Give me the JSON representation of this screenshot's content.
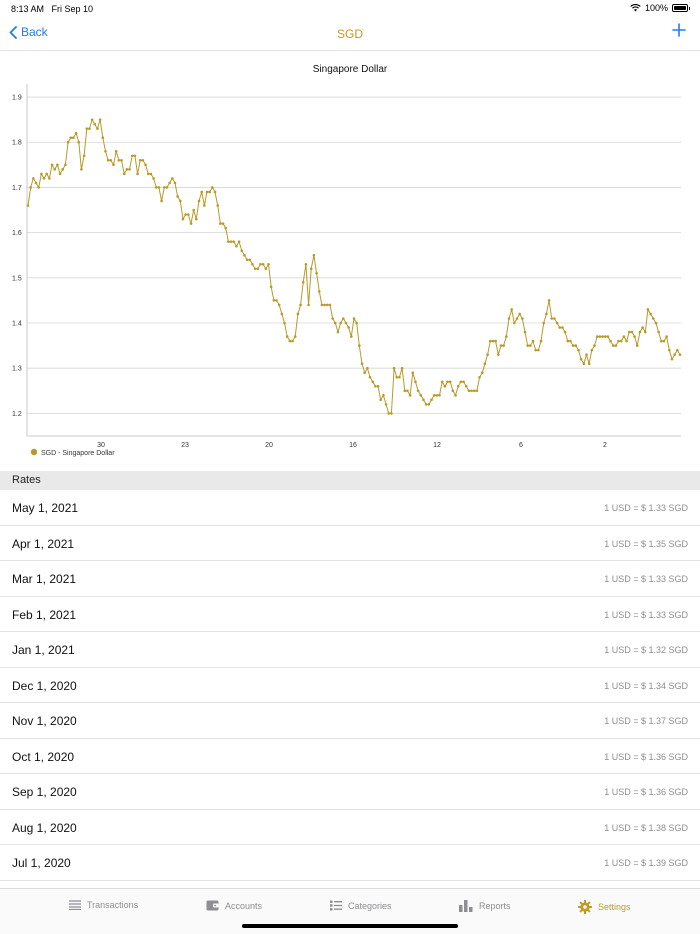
{
  "status": {
    "time": "8:13 AM",
    "date": "Fri Sep 10",
    "battery": "100%"
  },
  "nav": {
    "back_label": "Back",
    "title": "SGD"
  },
  "chart_data": {
    "type": "line",
    "title": "Singapore Dollar",
    "legend": "SGD - Singapore Dollar",
    "legend_position": "bottom-left",
    "grid": true,
    "color": "#b89a2a",
    "ylim": [
      1.15,
      1.92
    ],
    "yticks": [
      "1.2",
      "1.3",
      "1.4",
      "1.5",
      "1.6",
      "1.7",
      "1.8",
      "1.9"
    ],
    "xticks": [
      "30",
      "23",
      "20",
      "16",
      "12",
      "6",
      "2"
    ],
    "series": [
      {
        "name": "SGD - Singapore Dollar",
        "values": [
          1.66,
          1.7,
          1.72,
          1.71,
          1.7,
          1.73,
          1.72,
          1.73,
          1.72,
          1.75,
          1.74,
          1.75,
          1.73,
          1.74,
          1.75,
          1.8,
          1.81,
          1.81,
          1.82,
          1.8,
          1.74,
          1.77,
          1.83,
          1.83,
          1.85,
          1.84,
          1.83,
          1.85,
          1.81,
          1.78,
          1.76,
          1.76,
          1.75,
          1.78,
          1.76,
          1.76,
          1.73,
          1.74,
          1.74,
          1.77,
          1.77,
          1.73,
          1.76,
          1.76,
          1.75,
          1.73,
          1.73,
          1.72,
          1.7,
          1.7,
          1.67,
          1.7,
          1.7,
          1.71,
          1.72,
          1.71,
          1.68,
          1.67,
          1.63,
          1.64,
          1.64,
          1.62,
          1.65,
          1.63,
          1.67,
          1.69,
          1.66,
          1.69,
          1.69,
          1.7,
          1.69,
          1.66,
          1.62,
          1.62,
          1.61,
          1.58,
          1.58,
          1.58,
          1.57,
          1.58,
          1.56,
          1.55,
          1.54,
          1.54,
          1.53,
          1.52,
          1.52,
          1.53,
          1.53,
          1.52,
          1.53,
          1.48,
          1.45,
          1.45,
          1.44,
          1.42,
          1.4,
          1.37,
          1.36,
          1.36,
          1.37,
          1.42,
          1.44,
          1.49,
          1.53,
          1.44,
          1.52,
          1.55,
          1.51,
          1.47,
          1.44,
          1.44,
          1.44,
          1.44,
          1.41,
          1.4,
          1.38,
          1.4,
          1.41,
          1.4,
          1.39,
          1.37,
          1.41,
          1.4,
          1.35,
          1.31,
          1.29,
          1.3,
          1.28,
          1.27,
          1.26,
          1.26,
          1.23,
          1.24,
          1.22,
          1.2,
          1.2,
          1.3,
          1.28,
          1.28,
          1.3,
          1.25,
          1.25,
          1.24,
          1.29,
          1.27,
          1.25,
          1.24,
          1.23,
          1.22,
          1.22,
          1.23,
          1.24,
          1.24,
          1.24,
          1.27,
          1.26,
          1.27,
          1.27,
          1.25,
          1.24,
          1.26,
          1.27,
          1.27,
          1.26,
          1.25,
          1.25,
          1.25,
          1.25,
          1.28,
          1.29,
          1.31,
          1.33,
          1.36,
          1.36,
          1.36,
          1.33,
          1.35,
          1.35,
          1.37,
          1.41,
          1.43,
          1.4,
          1.41,
          1.42,
          1.41,
          1.38,
          1.35,
          1.35,
          1.36,
          1.34,
          1.34,
          1.36,
          1.4,
          1.42,
          1.45,
          1.41,
          1.41,
          1.4,
          1.39,
          1.39,
          1.38,
          1.36,
          1.36,
          1.35,
          1.35,
          1.34,
          1.32,
          1.31,
          1.33,
          1.31,
          1.34,
          1.35,
          1.37,
          1.37,
          1.37,
          1.37,
          1.37,
          1.36,
          1.35,
          1.35,
          1.36,
          1.36,
          1.37,
          1.36,
          1.38,
          1.38,
          1.37,
          1.35,
          1.38,
          1.39,
          1.38,
          1.43,
          1.42,
          1.41,
          1.4,
          1.38,
          1.36,
          1.36,
          1.37,
          1.34,
          1.32,
          1.33,
          1.34,
          1.33
        ]
      }
    ]
  },
  "rates": {
    "header": "Rates",
    "items": [
      {
        "date": "May 1, 2021",
        "value": "1 USD = $ 1.33 SGD"
      },
      {
        "date": "Apr 1, 2021",
        "value": "1 USD = $ 1.35 SGD"
      },
      {
        "date": "Mar 1, 2021",
        "value": "1 USD = $ 1.33 SGD"
      },
      {
        "date": "Feb 1, 2021",
        "value": "1 USD = $ 1.33 SGD"
      },
      {
        "date": "Jan 1, 2021",
        "value": "1 USD = $ 1.32 SGD"
      },
      {
        "date": "Dec 1, 2020",
        "value": "1 USD = $ 1.34 SGD"
      },
      {
        "date": "Nov 1, 2020",
        "value": "1 USD = $ 1.37 SGD"
      },
      {
        "date": "Oct 1, 2020",
        "value": "1 USD = $ 1.36 SGD"
      },
      {
        "date": "Sep 1, 2020",
        "value": "1 USD = $ 1.36 SGD"
      },
      {
        "date": "Aug 1, 2020",
        "value": "1 USD = $ 1.38 SGD"
      },
      {
        "date": "Jul 1, 2020",
        "value": "1 USD = $ 1.39 SGD"
      }
    ]
  },
  "tabs": {
    "transactions": "Transactions",
    "accounts": "Accounts",
    "categories": "Categories",
    "reports": "Reports",
    "settings": "Settings"
  },
  "colors": {
    "accent": "#c39a20",
    "link": "#1a7ef3"
  }
}
